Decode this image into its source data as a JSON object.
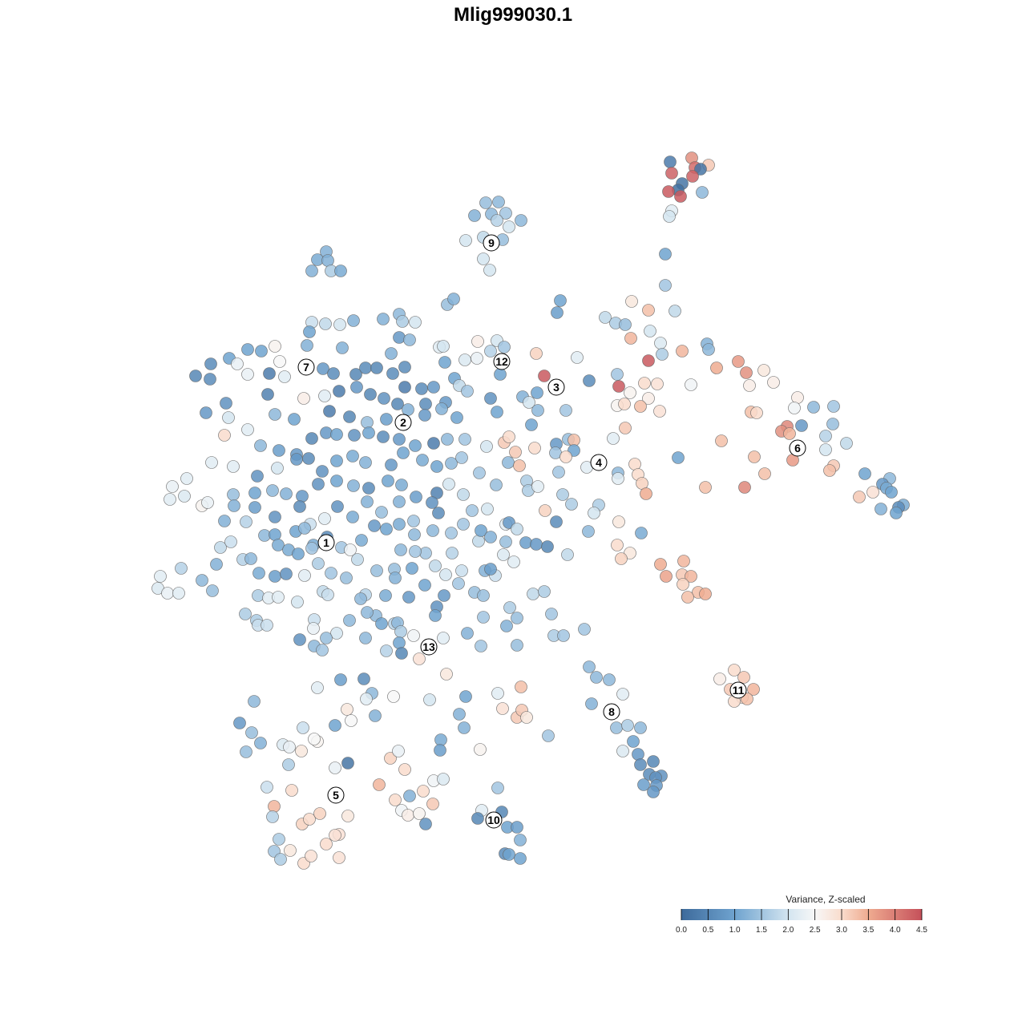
{
  "chart_data": {
    "type": "scatter",
    "title": "Mlig999030.1",
    "xlim": [
      0,
      1280
    ],
    "ylim": [
      1280,
      0
    ],
    "x": [
      836,
      863,
      884,
      867,
      874,
      838,
      864,
      851,
      846,
      834,
      849,
      876,
      838,
      835,
      606,
      622,
      592,
      613,
      631,
      650,
      620,
      635,
      581,
      603,
      627,
      603,
      611,
      407,
      396,
      409,
      389,
      413,
      425,
      830,
      830,
      842,
      558,
      566,
      699,
      695,
      596,
      620,
      629,
      612,
      548,
      553,
      580,
      595,
      624,
      669,
      720,
      679,
      735,
      389,
      406,
      424,
      441,
      386,
      478,
      498,
      502,
      518,
      383,
      427,
      498,
      511,
      488,
      343,
      349,
      326,
      309,
      286,
      263,
      296,
      244,
      262,
      309,
      336,
      355,
      403,
      416,
      444,
      456,
      470,
      490,
      505,
      505,
      526,
      541,
      555,
      567,
      573,
      583,
      334,
      379,
      405,
      423,
      445,
      462,
      479,
      496,
      509,
      531,
      556,
      282,
      257,
      285,
      343,
      367,
      411,
      436,
      458,
      482,
      530,
      551,
      570,
      612,
      620,
      652,
      660,
      670,
      706,
      309,
      280,
      325,
      348,
      370,
      389,
      407,
      420,
      442,
      460,
      478,
      498,
      518,
      541,
      558,
      580,
      607,
      629,
      635,
      643,
      667,
      663,
      671,
      694,
      709,
      716,
      716,
      693,
      706,
      264,
      291,
      321,
      346,
      370,
      385,
      402,
      420,
      440,
      456,
      488,
      503,
      527,
      545,
      563,
      576,
      634,
      648,
      697,
      732,
      771,
      792,
      796,
      215,
      233,
      212,
      230,
      252,
      259,
      291,
      292,
      318,
      340,
      357,
      377,
      397,
      420,
      441,
      460,
      484,
      501,
      519,
      545,
      560,
      578,
      598,
      619,
      657,
      659,
      671,
      702,
      771,
      801,
      806,
      280,
      307,
      318,
      343,
      374,
      387,
      405,
      421,
      440,
      458,
      476,
      498,
      516,
      539,
      547,
      578,
      589,
      608,
      631,
      635,
      680,
      713,
      747,
      741,
      694,
      772,
      275,
      288,
      303,
      313,
      330,
      343,
      347,
      360,
      369,
      380,
      391,
      408,
      426,
      437,
      451,
      467,
      482,
      498,
      517,
      540,
      563,
      597,
      600,
      612,
      631,
      645,
      656,
      669,
      683,
      628,
      641,
      734,
      800,
      770,
      786,
      775,
      708,
      372,
      389,
      200,
      197,
      209,
      223,
      226,
      252,
      265,
      270,
      323,
      343,
      357,
      380,
      397,
      413,
      432,
      446,
      470,
      492,
      514,
      493,
      531,
      543,
      556,
      576,
      564,
      518,
      500,
      605,
      618,
      612,
      572,
      592,
      603,
      636,
      665,
      679,
      824,
      831,
      853,
      851,
      862,
      852,
      871,
      880,
      858,
      322,
      335,
      347,
      371,
      403,
      409,
      456,
      450,
      481,
      510,
      530,
      554,
      545,
      469,
      476,
      492,
      496,
      500,
      516,
      543,
      306,
      320,
      322,
      333,
      392,
      391,
      420,
      436,
      458,
      374,
      392,
      402,
      407,
      456,
      482,
      498,
      501,
      523,
      553,
      583,
      600,
      603,
      632,
      645,
      645,
      688,
      691,
      703,
      729,
      425,
      454,
      396,
      464,
      457,
      491,
      536,
      557,
      581,
      621,
      650,
      627,
      645,
      651,
      657,
      317,
      299,
      314,
      325,
      307,
      378,
      418,
      433,
      438,
      468,
      573,
      579,
      550,
      549,
      599,
      684,
      353,
      361,
      376,
      396,
      392,
      360,
      418,
      434,
      487,
      497,
      505,
      473,
      528,
      541,
      553,
      333,
      364,
      342,
      340,
      377,
      386,
      399,
      434,
      493,
      511,
      540,
      501,
      509,
      523,
      531,
      348,
      342,
      362,
      350,
      379,
      388,
      407,
      423,
      418,
      423,
      621,
      601,
      626,
      596,
      633,
      645,
      649,
      630,
      635,
      649,
      735,
      744,
      760,
      777,
      738,
      769,
      783,
      799,
      790,
      777,
      796,
      799,
      815,
      810,
      825,
      818,
      803,
      819,
      815,
      916,
      928,
      898,
      911,
      940,
      926,
      916,
      932,
      755,
      768,
      780,
      788,
      809,
      811,
      787,
      824,
      826,
      809,
      851,
      882,
      884,
      894,
      921,
      931,
      953,
      965,
      935,
      862,
      770,
      772,
      786,
      804,
      820,
      809,
      770,
      779,
      799,
      823,
      780,
      765,
      995,
      991,
      937,
      944,
      1015,
      1040,
      1039,
      1030,
      1056,
      1030,
      982,
      975,
      985,
      1000,
      900,
      941,
      989,
      1040,
      1035,
      954,
      880,
      929,
      846,
      1079,
      1110,
      1101,
      1106,
      1089,
      1072,
      1112,
      1127,
      1121,
      1118,
      1099
    ],
    "values": [
      202,
      197,
      206,
      209,
      211,
      216,
      220,
      229,
      237,
      239,
      245,
      240,
      263,
      270,
      253,
      252,
      269,
      267,
      266,
      275,
      275,
      283,
      300,
      296,
      299,
      323,
      337,
      314,
      324,
      325,
      338,
      338,
      338,
      317,
      356,
      388,
      380,
      373,
      375,
      390,
      426,
      425,
      433,
      438,
      433,
      432,
      449,
      447,
      467,
      441,
      446,
      469,
      475,
      402,
      404,
      405,
      400,
      414,
      398,
      392,
      401,
      402,
      431,
      434,
      421,
      424,
      441,
      432,
      451,
      438,
      436,
      447,
      454,
      454,
      469,
      473,
      467,
      466,
      470,
      460,
      466,
      467,
      459,
      459,
      466,
      458,
      483,
      485,
      483,
      452,
      472,
      481,
      488,
      492,
      497,
      494,
      488,
      483,
      492,
      497,
      504,
      511,
      504,
      502,
      503,
      515,
      521,
      517,
      523,
      513,
      520,
      527,
      523,
      518,
      510,
      521,
      497,
      514,
      495,
      502,
      490,
      512,
      536,
      543,
      556,
      562,
      567,
      547,
      540,
      542,
      543,
      540,
      545,
      548,
      556,
      553,
      548,
      548,
      557,
      552,
      545,
      564,
      559,
      530,
      512,
      554,
      548,
      549,
      562,
      565,
      570,
      577,
      582,
      594,
      584,
      573,
      572,
      588,
      575,
      569,
      577,
      580,
      565,
      574,
      582,
      578,
      571,
      577,
      581,
      589,
      583,
      590,
      579,
      592,
      607,
      597,
      623,
      619,
      631,
      627,
      617,
      631,
      615,
      612,
      616,
      619,
      604,
      600,
      606,
      609,
      600,
      605,
      620,
      615,
      604,
      617,
      590,
      605,
      600,
      612,
      607,
      617,
      597,
      603,
      616,
      650,
      651,
      633,
      645,
      632,
      654,
      647,
      632,
      645,
      626,
      639,
      626,
      650,
      627,
      640,
      654,
      637,
      635,
      654,
      652,
      637,
      629,
      630,
      640,
      651,
      651,
      683,
      676,
      698,
      697,
      668,
      667,
      680,
      686,
      663,
      659,
      680,
      670,
      683,
      686,
      674,
      656,
      660,
      654,
      667,
      662,
      665,
      675,
      662,
      670,
      676,
      660,
      677,
      679,
      682,
      692,
      701,
      663,
      665,
      680,
      690,
      697,
      692,
      691,
      684,
      719,
      734,
      740,
      740,
      709,
      724,
      737,
      704,
      715,
      719,
      716,
      718,
      703,
      715,
      721,
      698,
      712,
      710,
      709,
      721,
      690,
      706,
      717,
      712,
      690,
      688,
      686,
      712,
      718,
      710,
      728,
      739,
      743,
      758,
      741,
      738,
      704,
      719,
      700,
      717,
      719,
      729,
      739,
      741,
      745,
      743,
      746,
      745,
      751,
      738,
      742,
      742,
      747,
      743,
      745,
      730,
      743,
      757,
      768,
      778,
      778,
      777,
      788,
      793,
      768,
      766,
      774,
      780,
      780,
      773,
      784,
      790,
      774,
      764,
      798,
      806,
      811,
      796,
      796,
      812,
      802,
      815,
      822,
      796,
      790,
      806,
      770,
      781,
      771,
      805,
      766,
      793,
      793,
      785,
      848,
      847,
      858,
      865,
      872,
      869,
      873,
      841,
      869,
      865,
      857,
      884,
      895,
      886,
      895,
      875,
      902,
      914,
      927,
      938,
      908,
      905,
      885,
      899,
      893,
      891,
      908,
      923,
      936,
      935,
      918,
      929,
      932,
      937,
      925,
      922,
      954,
      958,
      952,
      946,
      937,
      960,
      979,
      987,
      974,
      972,
      982,
      986,
      1006,
      1019,
      1028,
      1022,
      1015,
      1018,
      998,
      993,
      1003,
      1011,
      1017,
      1015,
      1028,
      1047,
      1062,
      1061,
      1072,
      1077,
      1068,
      1053,
      1041,
      1042,
      1070,
      983,
      1011,
      1013,
      1021,
      1032,
      1032,
      1048,
      1065,
      1066,
      1071,
      832,
      845,
      848,
      866,
      878,
      908,
      905,
      908,
      925,
      937,
      941,
      954,
      950,
      966,
      968,
      970,
      979,
      980,
      988,
      836,
      845,
      847,
      860,
      860,
      870,
      875,
      872,
      396,
      403,
      405,
      376,
      387,
      413,
      422,
      428,
      442,
      450,
      438,
      429,
      436,
      459,
      451,
      465,
      462,
      477,
      481,
      480,
      467,
      482,
      490,
      478,
      479,
      497,
      506,
      504,
      507,
      513,
      534,
      547,
      496,
      509,
      514,
      515,
      508,
      507,
      529,
      544,
      553,
      561,
      532,
      538,
      541,
      531,
      550,
      570,
      574,
      581,
      587,
      591,
      608,
      608,
      571,
      591,
      597,
      604,
      609,
      614,
      620,
      614,
      630,
      633,
      640,
      635
    ],
    "z": [
      0.3,
      3.8,
      3.2,
      4.2,
      0.2,
      4.3,
      4.3,
      0.2,
      0.1,
      4.4,
      4.4,
      1.3,
      2.2,
      2.0,
      1.4,
      1.3,
      1.2,
      1.3,
      1.5,
      1.3,
      1.7,
      2.0,
      2.0,
      1.8,
      1.4,
      2.0,
      2.0,
      1.2,
      1.1,
      1.2,
      1.2,
      1.6,
      1.1,
      1.0,
      1.5,
      1.8,
      1.4,
      1.2,
      1.0,
      0.9,
      2.7,
      2.0,
      1.5,
      1.7,
      2.2,
      2.0,
      2.1,
      2.3,
      1.0,
      3.1,
      2.2,
      4.4,
      0.6,
      1.9,
      1.8,
      2.0,
      1.2,
      1.0,
      1.2,
      1.3,
      1.6,
      2.0,
      1.2,
      1.2,
      0.8,
      1.3,
      1.2,
      2.6,
      2.5,
      1.0,
      1.0,
      1.0,
      0.6,
      2.3,
      0.5,
      0.6,
      2.3,
      0.3,
      2.2,
      0.8,
      0.6,
      0.5,
      0.6,
      0.5,
      0.6,
      0.6,
      0.3,
      0.6,
      0.8,
      1.0,
      1.0,
      1.8,
      1.5,
      0.4,
      2.7,
      2.2,
      0.3,
      0.8,
      0.5,
      0.7,
      0.5,
      1.2,
      0.6,
      0.8,
      0.7,
      0.8,
      2.0,
      1.3,
      1.0,
      0.3,
      0.5,
      1.4,
      0.9,
      0.8,
      1.2,
      1.0,
      0.7,
      1.0,
      1.2,
      2.0,
      1.0,
      1.5,
      2.2,
      3.0,
      1.3,
      0.9,
      0.8,
      0.5,
      0.8,
      1.0,
      0.7,
      1.0,
      0.6,
      0.8,
      1.0,
      0.3,
      1.3,
      1.5,
      2.0,
      3.2,
      3.0,
      3.2,
      3.0,
      1.0,
      1.3,
      0.8,
      1.4,
      3.3,
      1.0,
      1.5,
      3.0,
      2.2,
      2.2,
      0.7,
      2.0,
      0.8,
      0.6,
      0.7,
      1.0,
      1.1,
      1.2,
      0.8,
      1.0,
      1.1,
      1.0,
      1.3,
      1.5,
      1.3,
      3.3,
      1.5,
      2.2,
      1.3,
      3.0,
      3.0,
      2.3,
      2.2,
      2.2,
      2.1,
      2.6,
      2.3,
      1.4,
      1.2,
      1.0,
      1.3,
      1.2,
      0.8,
      0.7,
      1.0,
      1.2,
      0.6,
      1.0,
      1.1,
      0.9,
      0.4,
      2.0,
      1.8,
      1.5,
      1.4,
      1.6,
      1.6,
      2.2,
      1.6,
      2.2,
      3.1,
      3.5,
      1.2,
      1.7,
      0.9,
      0.7,
      0.6,
      1.9,
      2.2,
      0.7,
      1.1,
      1.2,
      1.4,
      1.2,
      1.5,
      0.7,
      0.6,
      1.5,
      1.5,
      2.0,
      2.2,
      0.8,
      3.1,
      1.6,
      1.6,
      2.0,
      0.6,
      2.8,
      1.8,
      1.9,
      1.7,
      1.3,
      1.3,
      1.0,
      1.1,
      1.1,
      1.0,
      1.3,
      1.1,
      0.6,
      1.5,
      2.4,
      1.1,
      0.8,
      1.0,
      1.1,
      1.3,
      1.3,
      1.5,
      1.8,
      1.0,
      1.2,
      1.4,
      1.8,
      0.9,
      0.8,
      0.5,
      2.1,
      2.2,
      1.3,
      1.1,
      3.0,
      2.8,
      3.1,
      1.8,
      1.0,
      1.5,
      2.2,
      2.1,
      2.3,
      2.2,
      1.7,
      1.3,
      1.4,
      1.2,
      1.1,
      0.9,
      0.7,
      2.2,
      1.6,
      1.5,
      1.4,
      1.8,
      1.4,
      1.4,
      1.0,
      1.2,
      1.5,
      1.8,
      2.0,
      1.9,
      1.7,
      1.5,
      1.3,
      1.2,
      1.9,
      0.9,
      1.5,
      1.4,
      1.4,
      1.6,
      1.8,
      1.6,
      3.5,
      3.6,
      3.4,
      3.2,
      3.4,
      3.1,
      3.3,
      3.5,
      3.3,
      1.6,
      2.2,
      2.2,
      2.0,
      1.8,
      1.9,
      1.7,
      1.3,
      1.1,
      0.8,
      1.0,
      0.8,
      0.7,
      1.3,
      1.0,
      1.7,
      1.3,
      1.6,
      2.4,
      1.0,
      1.6,
      1.6,
      1.9,
      1.9,
      1.9,
      2.3,
      2.0,
      1.3,
      1.3,
      0.7,
      1.3,
      1.5,
      1.4,
      1.3,
      1.7,
      1.0,
      0.5,
      2.9,
      2.2,
      1.2,
      1.5,
      1.5,
      1.2,
      1.4,
      1.4,
      1.5,
      1.6,
      1.5,
      1.5,
      0.9,
      0.6,
      2.2,
      1.3,
      2.2,
      2.5,
      2.0,
      2.8,
      1.0,
      2.2,
      3.3,
      2.9,
      3.2,
      3.2,
      2.8,
      1.3,
      0.8,
      1.4,
      1.2,
      1.4,
      1.9,
      1.0,
      2.8,
      2.5,
      1.2,
      1.2,
      1.2,
      1.1,
      0.9,
      2.6,
      1.5,
      2.1,
      2.3,
      2.8,
      2.6,
      2.5,
      1.6,
      2.3,
      0.2,
      3.1,
      2.3,
      3.0,
      3.4,
      3.0,
      2.4,
      2.1,
      1.9,
      3.0,
      3.4,
      1.7,
      3.1,
      3.0,
      3.1,
      2.8,
      3.0,
      1.2,
      3.2,
      2.4,
      2.7,
      2.6,
      0.7,
      1.6,
      1.5,
      2.8,
      1.6,
      3.0,
      2.9,
      3.0,
      2.9,
      2.9,
      2.9,
      1.5,
      2.2,
      0.5,
      0.5,
      1.0,
      0.9,
      1.2,
      0.6,
      1.0,
      1.0,
      1.3,
      1.3,
      1.3,
      2.2,
      1.2,
      1.4,
      1.6,
      1.3,
      1.0,
      2.1,
      0.8,
      0.6,
      0.5,
      0.6,
      0.7,
      0.7,
      0.9,
      0.8,
      0.8,
      3.0,
      3.2,
      2.7,
      3.2,
      3.4,
      3.0,
      3.0,
      3.3,
      1.8,
      1.6,
      1.4,
      2.8,
      3.3,
      2.0,
      3.4,
      2.1,
      1.6,
      4.4,
      3.4,
      1.2,
      1.3,
      3.5,
      3.7,
      3.8,
      2.8,
      2.7,
      2.7,
      2.4,
      1.5,
      4.4,
      2.6,
      3.0,
      2.9,
      2.7,
      2.6,
      3.0,
      3.3,
      2.9,
      3.2,
      2.2,
      2.7,
      2.4,
      3.3,
      3.0,
      1.3,
      1.5,
      1.4,
      1.7,
      1.8,
      2.0,
      3.9,
      3.8,
      3.4,
      0.8,
      3.3,
      3.3,
      3.7,
      3.2,
      3.3,
      3.3,
      3.3,
      3.9,
      1.0,
      1.0,
      1.3,
      0.8,
      1.1,
      2.9,
      3.2,
      1.0,
      1.1,
      0.6,
      1.0,
      1.2
    ],
    "clusters": {
      "labels": [
        "1",
        "2",
        "3",
        "4",
        "5",
        "6",
        "7",
        "8",
        "9",
        "10",
        "11",
        "12",
        "13"
      ],
      "x": [
        407,
        503,
        694,
        747,
        419,
        995,
        382,
        763,
        613,
        616,
        921,
        626,
        535
      ],
      "y": [
        677,
        527,
        483,
        577,
        992,
        559,
        458,
        888,
        303,
        1023,
        861,
        451,
        807
      ]
    },
    "colorbar": {
      "title": "Variance, Z-scaled",
      "clim": [
        0,
        4.5
      ],
      "ticks": [
        {
          "value": 0,
          "label": "0.0"
        },
        0.5,
        {
          "value": 1,
          "label": "1.0"
        },
        1.5,
        {
          "value": 2,
          "label": "2.0"
        },
        2.5,
        {
          "value": 3,
          "label": "3.0"
        },
        3.5,
        {
          "value": 4,
          "label": "4.0"
        },
        4.5
      ]
    },
    "colorscale": [
      {
        "value": 0,
        "color": "#3d6a9b"
      },
      {
        "value": 1,
        "color": "#6fa3cf"
      },
      {
        "value": 2,
        "color": "#d3e5f0"
      },
      {
        "value": 2.5,
        "color": "#f7f7f7"
      },
      {
        "value": 3,
        "color": "#f9dccc"
      },
      {
        "value": 3.5,
        "color": "#efab90"
      },
      {
        "value": 4.5,
        "color": "#c5505a"
      }
    ]
  }
}
